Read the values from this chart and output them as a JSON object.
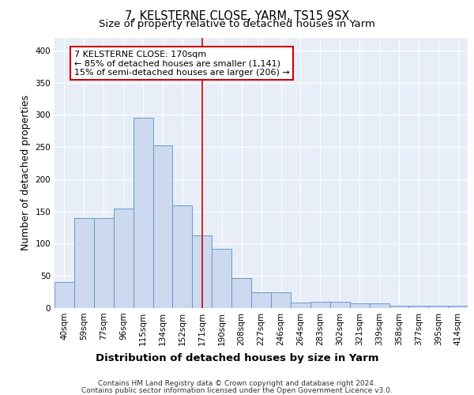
{
  "title1": "7, KELSTERNE CLOSE, YARM, TS15 9SX",
  "title2": "Size of property relative to detached houses in Yarm",
  "xlabel": "Distribution of detached houses by size in Yarm",
  "ylabel": "Number of detached properties",
  "footer1": "Contains HM Land Registry data © Crown copyright and database right 2024.",
  "footer2": "Contains public sector information licensed under the Open Government Licence v3.0.",
  "categories": [
    "40sqm",
    "59sqm",
    "77sqm",
    "96sqm",
    "115sqm",
    "134sqm",
    "152sqm",
    "171sqm",
    "190sqm",
    "208sqm",
    "227sqm",
    "246sqm",
    "264sqm",
    "283sqm",
    "302sqm",
    "321sqm",
    "339sqm",
    "358sqm",
    "377sqm",
    "395sqm",
    "414sqm"
  ],
  "values": [
    40,
    140,
    140,
    155,
    295,
    252,
    160,
    113,
    92,
    47,
    25,
    25,
    8,
    10,
    10,
    7,
    7,
    4,
    4,
    4,
    4
  ],
  "bar_color": "#ccd9ee",
  "bar_edge_color": "#6699cc",
  "vline_bar_index": 7,
  "vline_color": "#cc0000",
  "annotation_line1": "7 KELSTERNE CLOSE: 170sqm",
  "annotation_line2": "← 85% of detached houses are smaller (1,141)",
  "annotation_line3": "15% of semi-detached houses are larger (206) →",
  "annotation_box_color": "#ffffff",
  "annotation_box_edge": "#cc0000",
  "ylim": [
    0,
    420
  ],
  "yticks": [
    0,
    50,
    100,
    150,
    200,
    250,
    300,
    350,
    400
  ],
  "background_color": "#e8eef8",
  "grid_color": "#ffffff",
  "title1_fontsize": 10.5,
  "title2_fontsize": 9.5,
  "tick_fontsize": 7.5,
  "ylabel_fontsize": 9,
  "xlabel_fontsize": 9.5,
  "annotation_fontsize": 8,
  "footer_fontsize": 6.5
}
